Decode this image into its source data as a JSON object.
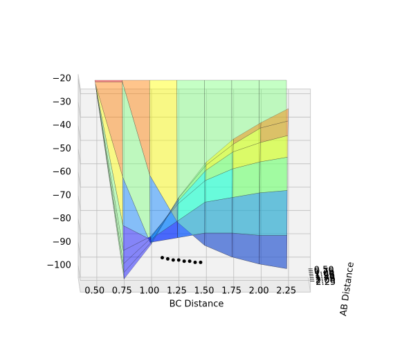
{
  "chart_data": {
    "type": "surface3d",
    "xlabel": "BC Distance",
    "ylabel": "AB Distance",
    "x": [
      0.5,
      0.75,
      1.0,
      1.25,
      1.5,
      1.75,
      2.0,
      2.25
    ],
    "y": [
      0.5,
      0.75,
      1.0,
      1.25,
      1.5,
      1.75,
      2.0,
      2.25
    ],
    "z": [
      [
        -20,
        -20,
        -20,
        -20,
        -20,
        -20,
        -20,
        -20
      ],
      [
        -20,
        -20,
        -60,
        -80,
        -90,
        -95,
        -98,
        -100
      ],
      [
        -20,
        -60,
        -88,
        -86,
        -84,
        -84,
        -85,
        -85
      ],
      [
        -20,
        -80,
        -86,
        -78,
        -70,
        -68,
        -66,
        -65
      ],
      [
        -20,
        -90,
        -84,
        -70,
        -60,
        -55,
        -52,
        -50
      ],
      [
        -20,
        -95,
        -84,
        -68,
        -55,
        -47,
        -43,
        -40
      ],
      [
        -20,
        -98,
        -85,
        -66,
        -52,
        -43,
        -36,
        -33
      ],
      [
        -20,
        -100,
        -85,
        -65,
        -50,
        -40,
        -33,
        -27
      ]
    ],
    "xlim": [
      0.35,
      2.45
    ],
    "ylim": [
      0.3,
      2.45
    ],
    "zlim": [
      -105,
      -18
    ],
    "xticks": [
      {
        "value": 0.5,
        "label": "0.50"
      },
      {
        "value": 0.75,
        "label": "0.75"
      },
      {
        "value": 1.0,
        "label": "1.00"
      },
      {
        "value": 1.25,
        "label": "1.25"
      },
      {
        "value": 1.5,
        "label": "1.50"
      },
      {
        "value": 1.75,
        "label": "1.75"
      },
      {
        "value": 2.0,
        "label": "2.00"
      },
      {
        "value": 2.25,
        "label": "2.25"
      }
    ],
    "yticks": [
      {
        "value": 0.5,
        "label": "0.50"
      },
      {
        "value": 0.75,
        "label": "0.75"
      },
      {
        "value": 1.0,
        "label": "1.00"
      },
      {
        "value": 1.25,
        "label": "1.25"
      },
      {
        "value": 1.5,
        "label": "1.50"
      },
      {
        "value": 1.75,
        "label": "1.75"
      },
      {
        "value": 2.0,
        "label": "2.00"
      },
      {
        "value": 2.25,
        "label": "2.25"
      }
    ],
    "zticks": [
      {
        "value": -100,
        "label": "−100"
      },
      {
        "value": -90,
        "label": "−90"
      },
      {
        "value": -80,
        "label": "−80"
      },
      {
        "value": -70,
        "label": "−70"
      },
      {
        "value": -60,
        "label": "−60"
      },
      {
        "value": -50,
        "label": "−50"
      },
      {
        "value": -40,
        "label": "−40"
      },
      {
        "value": -30,
        "label": "−30"
      },
      {
        "value": -20,
        "label": "−20"
      }
    ],
    "colormap": [
      "#00007f",
      "#0000ff",
      "#007fff",
      "#00ffff",
      "#7fff7f",
      "#ffff00",
      "#ff7f00",
      "#ff0000"
    ],
    "trajectory": {
      "x": [
        1.1,
        1.15,
        1.2,
        1.25,
        1.3,
        1.35,
        1.4,
        1.45
      ],
      "y": [
        2.2,
        2.2,
        2.2,
        2.2,
        2.2,
        2.2,
        2.2,
        2.2
      ],
      "z": [
        -91,
        -91.5,
        -92,
        -92,
        -92.5,
        -92.5,
        -93,
        -93
      ]
    },
    "trajectory_color": "#000000",
    "grid": true
  }
}
